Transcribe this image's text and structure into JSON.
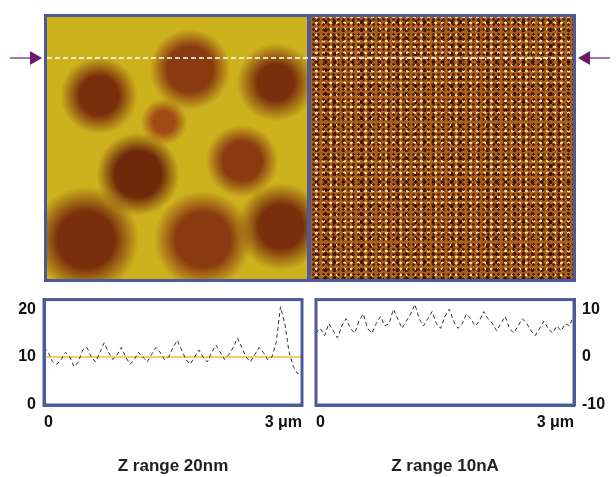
{
  "chart_data": [
    {
      "type": "line",
      "xlabel": "Z range 20nm",
      "x": [
        0,
        0.05,
        0.1,
        0.15,
        0.2,
        0.25,
        0.3,
        0.35,
        0.4,
        0.45,
        0.5,
        0.55,
        0.6,
        0.65,
        0.7,
        0.75,
        0.8,
        0.85,
        0.9,
        0.95,
        1,
        1.05,
        1.1,
        1.15,
        1.2,
        1.25,
        1.3,
        1.35,
        1.4,
        1.45,
        1.5,
        1.55,
        1.6,
        1.65,
        1.7,
        1.75,
        1.8,
        1.85,
        1.9,
        1.95,
        2,
        2.05,
        2.1,
        2.15,
        2.2,
        2.25,
        2.3,
        2.35,
        2.4,
        2.45,
        2.5,
        2.55,
        2.6,
        2.65,
        2.7,
        2.75,
        2.8,
        2.85,
        2.9,
        2.95,
        3
      ],
      "series": [
        {
          "color": "#333333",
          "line_style": "dashed",
          "values": [
            12,
            11,
            9,
            8.5,
            9.5,
            11,
            10,
            8,
            9,
            11.5,
            12,
            10,
            9,
            11,
            13,
            11,
            9.5,
            10.5,
            12,
            10,
            8.5,
            9.5,
            11,
            10,
            9,
            10.5,
            12,
            11,
            9.5,
            10,
            12,
            13.5,
            11.5,
            9.5,
            8.5,
            10,
            11.5,
            10,
            9,
            11,
            12.5,
            11,
            9.5,
            10.5,
            12,
            14,
            12,
            10,
            9,
            10.5,
            12,
            11,
            9.5,
            10,
            13,
            20.5,
            17,
            11,
            8,
            6.5,
            7
          ]
        },
        {
          "color": "#f0c030",
          "line_style": "solid",
          "values": [
            10,
            10,
            10,
            10,
            10,
            10,
            10,
            10,
            10,
            10,
            10,
            10,
            10,
            10,
            10,
            10,
            10,
            10,
            10,
            10,
            10,
            10,
            10,
            10,
            10,
            10,
            10,
            10,
            10,
            10,
            10,
            10,
            10,
            10,
            10,
            10,
            10,
            10,
            10,
            10,
            10,
            10,
            10,
            10,
            10,
            10,
            10,
            10,
            10,
            10,
            10,
            10,
            10,
            10,
            10,
            10,
            10,
            10,
            10,
            10,
            10
          ]
        }
      ],
      "xlim": [
        0,
        3
      ],
      "xticks": [
        0,
        {
          "value": 3,
          "label": "3 μm"
        }
      ],
      "ylim": [
        0,
        22
      ],
      "yticks": [
        0,
        10,
        20
      ],
      "grid": false
    },
    {
      "type": "line",
      "xlabel": "Z range 10nA",
      "x": [
        0,
        0.05,
        0.1,
        0.15,
        0.2,
        0.25,
        0.3,
        0.35,
        0.4,
        0.45,
        0.5,
        0.55,
        0.6,
        0.65,
        0.7,
        0.75,
        0.8,
        0.85,
        0.9,
        0.95,
        1,
        1.05,
        1.1,
        1.15,
        1.2,
        1.25,
        1.3,
        1.35,
        1.4,
        1.45,
        1.5,
        1.55,
        1.6,
        1.65,
        1.7,
        1.75,
        1.8,
        1.85,
        1.9,
        1.95,
        2,
        2.05,
        2.1,
        2.15,
        2.2,
        2.25,
        2.3,
        2.35,
        2.4,
        2.45,
        2.5,
        2.55,
        2.6,
        2.65,
        2.7,
        2.75,
        2.8,
        2.85,
        2.9,
        2.95,
        3
      ],
      "series": [
        {
          "color": "#333333",
          "line_style": "dashed",
          "values": [
            5,
            6,
            4.5,
            7,
            5.5,
            4,
            6.5,
            8,
            6,
            5,
            7.5,
            9,
            6,
            5,
            7,
            8.5,
            6.5,
            7,
            10,
            8,
            6,
            7.5,
            9,
            11,
            8,
            6.5,
            8,
            9.5,
            7,
            6,
            8.5,
            10,
            7.5,
            6,
            7,
            9,
            8,
            6.5,
            7.5,
            9.5,
            8,
            7,
            5.5,
            7,
            8.5,
            6,
            5,
            6.5,
            8,
            7,
            5.5,
            4.5,
            6,
            7.5,
            6,
            5,
            6.5,
            5.5,
            7,
            6.5,
            9
          ]
        }
      ],
      "xlim": [
        0,
        3
      ],
      "xticks": [
        0,
        {
          "value": 3,
          "label": "3 μm"
        }
      ],
      "ylim": [
        -10,
        12
      ],
      "yticks": [
        -10,
        0,
        10
      ],
      "grid": false
    }
  ]
}
